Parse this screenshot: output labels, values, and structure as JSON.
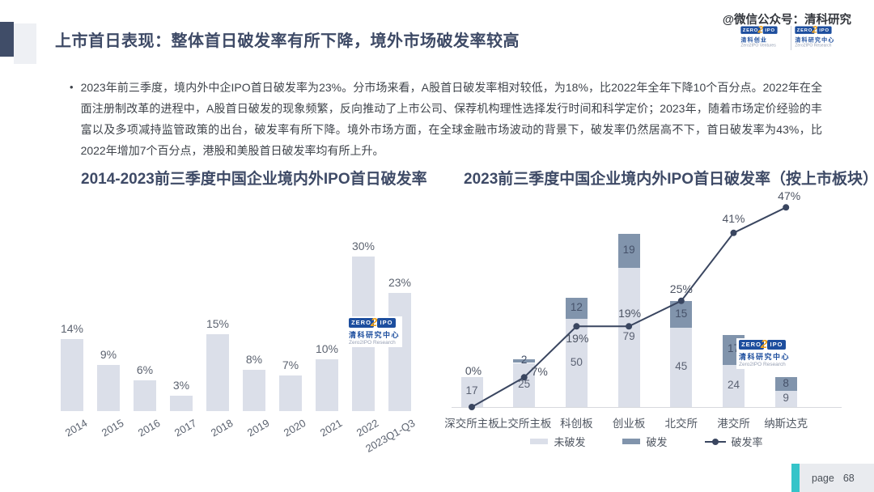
{
  "header": {
    "title": "上市首日表现：整体首日破发率有所下降，境外市场破发率较高",
    "watermark": "@微信公众号：清科研究",
    "brand": {
      "zero": "ZERO",
      "two": "2",
      "ipo": "IPO"
    },
    "logos": [
      {
        "cn": "清科创业",
        "en": "Zero2IPO Ventures"
      },
      {
        "cn": "清科研究中心",
        "en": "Zero2IPO Research"
      }
    ]
  },
  "summary": {
    "bullet": "•",
    "text": "2023年前三季度，境内外中企IPO首日破发率为23%。分市场来看，A股首日破发率相对较低，为18%，比2022年全年下降10个百分点。2022年在全面注册制改革的进程中，A股首日破发的现象频繁，反向推动了上市公司、保荐机构理性选择发行时间和科学定价；2023年，随着市场定价经验的丰富以及多项减持监管政策的出台，破发率有所下降。境外市场方面，在全球金融市场波动的背景下，破发率仍然居高不下，首日破发率为43%，比2022年增加7个百分点，港股和美股首日破发率均有所上升。"
  },
  "watermark_logo": {
    "cn": "清科研究中心",
    "en": "Zero2IPO Research"
  },
  "chart_data": [
    {
      "type": "bar",
      "title": "2014-2023前三季度中国企业境内外IPO首日破发率",
      "categories": [
        "2014",
        "2015",
        "2016",
        "2017",
        "2018",
        "2019",
        "2020",
        "2021",
        "2022",
        "2023Q1-Q3"
      ],
      "values": [
        14,
        9,
        6,
        3,
        15,
        8,
        7,
        10,
        30,
        23
      ],
      "labels": [
        "14%",
        "9%",
        "6%",
        "3%",
        "15%",
        "8%",
        "7%",
        "10%",
        "30%",
        "23%"
      ],
      "unit": "%",
      "ylim": [
        0,
        30
      ],
      "bar_color": "#dbdfe9",
      "grid": false,
      "legend_position": "none"
    },
    {
      "type": "combo-stacked-bar-line",
      "title": "2023前三季度中国企业境内外IPO首日破发率（按上市板块）",
      "categories": [
        "深交所主板",
        "上交所主板",
        "科创板",
        "创业板",
        "北交所",
        "港交所",
        "纳斯达克"
      ],
      "series": [
        {
          "name": "未破发",
          "type": "bar",
          "values": [
            17,
            25,
            50,
            79,
            45,
            24,
            9
          ],
          "color": "#dbdfe9"
        },
        {
          "name": "破发",
          "type": "bar",
          "values": [
            0,
            2,
            12,
            19,
            15,
            17,
            8
          ],
          "color": "#8194ac"
        },
        {
          "name": "破发率",
          "type": "line",
          "axis": "secondary",
          "values_pct": [
            0,
            7,
            19,
            19,
            25,
            41,
            47
          ],
          "labels": [
            "0%",
            "7%",
            "19%",
            "19%",
            "25%",
            "41%",
            "47%"
          ],
          "color": "#3a4660"
        }
      ],
      "ylim_primary": [
        0,
        100
      ],
      "ylim_secondary_pct": [
        0,
        50
      ],
      "grid": false,
      "legend": [
        "未破发",
        "破发",
        "破发率"
      ],
      "legend_position": "bottom"
    }
  ],
  "footer": {
    "page_label": "page",
    "page_number": "68",
    "accent_color": "#36c4c9"
  },
  "colors": {
    "title_navy": "#3e4a66",
    "body_text": "#3f444b",
    "chart_label_gray": "#5c6370",
    "unbroken_bar": "#dbdfe9",
    "broken_bar": "#8194ac",
    "rate_line": "#3a4660",
    "logo_blue": "#1d4e9e",
    "logo_orange": "#f0a31d",
    "footer_teal": "#36c4c9"
  }
}
